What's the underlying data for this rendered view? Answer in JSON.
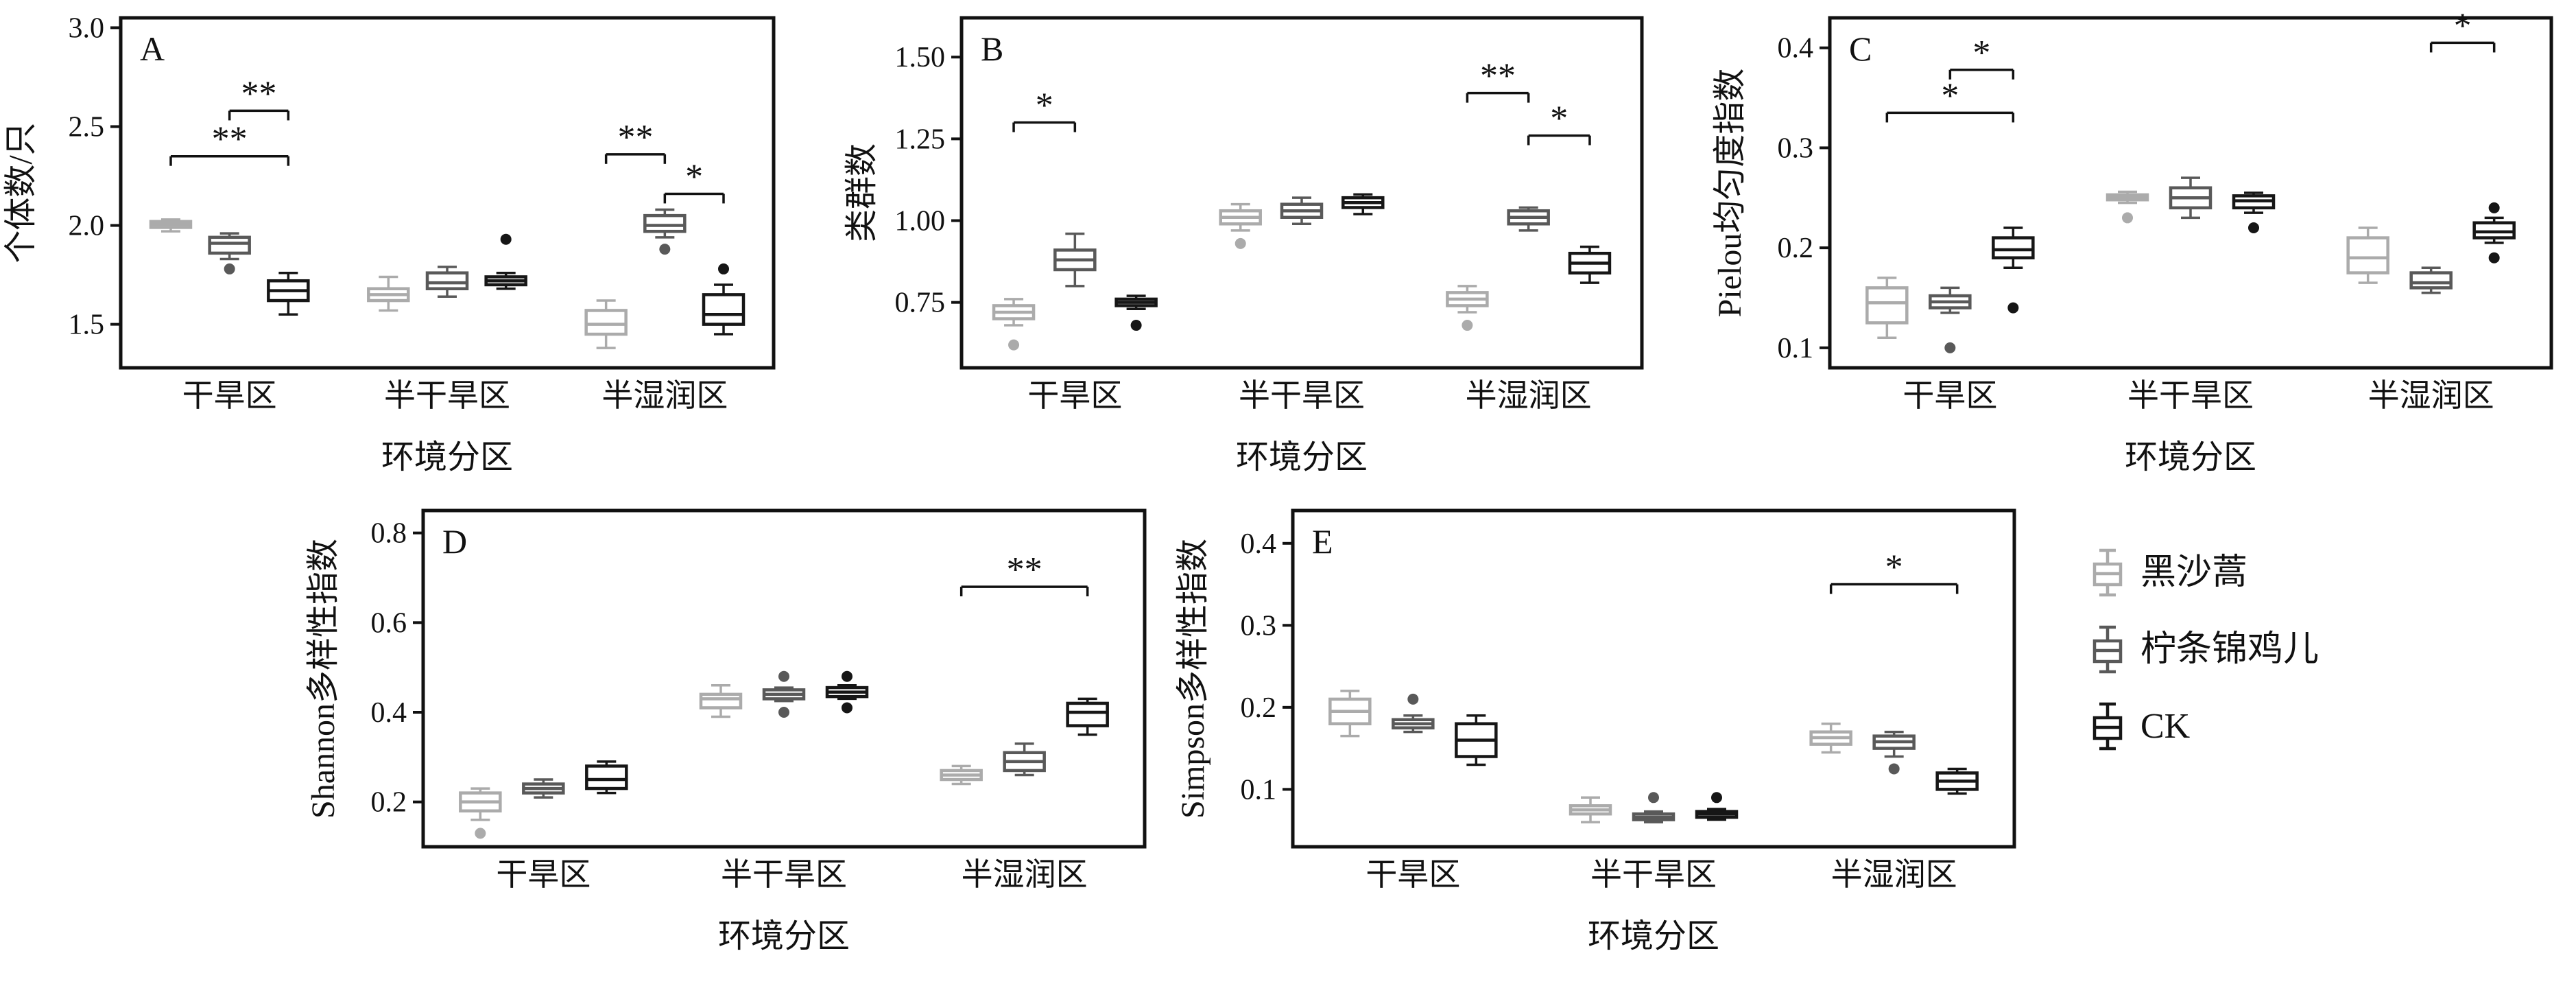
{
  "legend": {
    "items": [
      {
        "label": "黑沙蒿",
        "color": "#ababab"
      },
      {
        "label": "柠条锦鸡儿",
        "color": "#595959"
      },
      {
        "label": "CK",
        "color": "#161616"
      }
    ]
  },
  "chart_data": [
    {
      "type": "box",
      "panel_label": "A",
      "ylabel": "个体数/只",
      "xlabel": "环境分区",
      "ylim": [
        1.28,
        3.05
      ],
      "yticks": [
        1.5,
        2.0,
        2.5,
        3.0
      ],
      "tick_decimals": 1,
      "categories": [
        "干旱区",
        "半干旱区",
        "半湿润区"
      ],
      "series_names": [
        "黑沙蒿",
        "柠条锦鸡儿",
        "CK"
      ],
      "boxes": [
        [
          {
            "stats": [
              1.97,
              1.99,
              2.005,
              2.02,
              2.03
            ],
            "out": []
          },
          {
            "stats": [
              1.83,
              1.86,
              1.91,
              1.94,
              1.96
            ],
            "out": [
              1.78
            ]
          },
          {
            "stats": [
              1.55,
              1.62,
              1.67,
              1.72,
              1.76
            ],
            "out": []
          }
        ],
        [
          {
            "stats": [
              1.57,
              1.62,
              1.65,
              1.68,
              1.74
            ],
            "out": []
          },
          {
            "stats": [
              1.64,
              1.68,
              1.71,
              1.76,
              1.79
            ],
            "out": []
          },
          {
            "stats": [
              1.68,
              1.7,
              1.72,
              1.74,
              1.76
            ],
            "out": [
              1.93
            ]
          }
        ],
        [
          {
            "stats": [
              1.38,
              1.45,
              1.5,
              1.57,
              1.62
            ],
            "out": []
          },
          {
            "stats": [
              1.94,
              1.97,
              2.0,
              2.05,
              2.08
            ],
            "out": [
              1.88
            ]
          },
          {
            "stats": [
              1.45,
              1.5,
              1.55,
              1.65,
              1.7
            ],
            "out": [
              1.78
            ]
          }
        ]
      ],
      "significance": [
        {
          "group": 0,
          "i1": 0,
          "i2": 2,
          "y": 2.35,
          "label": "**"
        },
        {
          "group": 0,
          "i1": 1,
          "i2": 2,
          "y": 2.58,
          "label": "**"
        },
        {
          "group": 2,
          "i1": 0,
          "i2": 1,
          "y": 2.36,
          "label": "**"
        },
        {
          "group": 2,
          "i1": 1,
          "i2": 2,
          "y": 2.16,
          "label": "*"
        }
      ]
    },
    {
      "type": "box",
      "panel_label": "B",
      "ylabel": "类群数",
      "xlabel": "环境分区",
      "ylim": [
        0.55,
        1.62
      ],
      "yticks": [
        0.75,
        1.0,
        1.25,
        1.5
      ],
      "tick_decimals": 2,
      "categories": [
        "干旱区",
        "半干旱区",
        "半湿润区"
      ],
      "series_names": [
        "黑沙蒿",
        "柠条锦鸡儿",
        "CK"
      ],
      "boxes": [
        [
          {
            "stats": [
              0.68,
              0.7,
              0.72,
              0.74,
              0.76
            ],
            "out": [
              0.62
            ]
          },
          {
            "stats": [
              0.8,
              0.85,
              0.88,
              0.91,
              0.96
            ],
            "out": []
          },
          {
            "stats": [
              0.73,
              0.74,
              0.75,
              0.76,
              0.77
            ],
            "out": [
              0.68
            ]
          }
        ],
        [
          {
            "stats": [
              0.97,
              0.99,
              1.01,
              1.03,
              1.05
            ],
            "out": [
              0.93
            ]
          },
          {
            "stats": [
              0.99,
              1.01,
              1.03,
              1.05,
              1.07
            ],
            "out": []
          },
          {
            "stats": [
              1.02,
              1.04,
              1.055,
              1.07,
              1.08
            ],
            "out": []
          }
        ],
        [
          {
            "stats": [
              0.72,
              0.74,
              0.76,
              0.78,
              0.8
            ],
            "out": [
              0.68
            ]
          },
          {
            "stats": [
              0.97,
              0.99,
              1.01,
              1.03,
              1.04
            ],
            "out": []
          },
          {
            "stats": [
              0.81,
              0.84,
              0.87,
              0.9,
              0.92
            ],
            "out": []
          }
        ]
      ],
      "significance": [
        {
          "group": 0,
          "i1": 0,
          "i2": 1,
          "y": 1.3,
          "label": "*"
        },
        {
          "group": 2,
          "i1": 0,
          "i2": 1,
          "y": 1.39,
          "label": "**"
        },
        {
          "group": 2,
          "i1": 1,
          "i2": 2,
          "y": 1.26,
          "label": "*"
        }
      ]
    },
    {
      "type": "box",
      "panel_label": "C",
      "ylabel": "Pielou均匀度指数",
      "xlabel": "环境分区",
      "ylim": [
        0.08,
        0.43
      ],
      "yticks": [
        0.1,
        0.2,
        0.3,
        0.4
      ],
      "tick_decimals": 1,
      "categories": [
        "干旱区",
        "半干旱区",
        "半湿润区"
      ],
      "series_names": [
        "黑沙蒿",
        "柠条锦鸡儿",
        "CK"
      ],
      "boxes": [
        [
          {
            "stats": [
              0.11,
              0.125,
              0.145,
              0.16,
              0.17
            ],
            "out": []
          },
          {
            "stats": [
              0.135,
              0.14,
              0.146,
              0.152,
              0.16
            ],
            "out": [
              0.1
            ]
          },
          {
            "stats": [
              0.18,
              0.19,
              0.198,
              0.21,
              0.22
            ],
            "out": [
              0.14
            ]
          }
        ],
        [
          {
            "stats": [
              0.245,
              0.248,
              0.25,
              0.253,
              0.256
            ],
            "out": [
              0.23
            ]
          },
          {
            "stats": [
              0.23,
              0.24,
              0.25,
              0.26,
              0.27
            ],
            "out": []
          },
          {
            "stats": [
              0.235,
              0.24,
              0.247,
              0.252,
              0.255
            ],
            "out": [
              0.22
            ]
          }
        ],
        [
          {
            "stats": [
              0.165,
              0.175,
              0.19,
              0.21,
              0.22
            ],
            "out": []
          },
          {
            "stats": [
              0.155,
              0.16,
              0.165,
              0.175,
              0.18
            ],
            "out": []
          },
          {
            "stats": [
              0.205,
              0.21,
              0.216,
              0.225,
              0.23
            ],
            "out": [
              0.19,
              0.24
            ]
          }
        ]
      ],
      "significance": [
        {
          "group": 0,
          "i1": 0,
          "i2": 2,
          "y": 0.335,
          "label": "*"
        },
        {
          "group": 0,
          "i1": 1,
          "i2": 2,
          "y": 0.378,
          "label": "*"
        },
        {
          "group": 2,
          "i1": 1,
          "i2": 2,
          "y": 0.405,
          "label": "*"
        }
      ]
    },
    {
      "type": "box",
      "panel_label": "D",
      "ylabel": "Shannon多样性指数",
      "xlabel": "环境分区",
      "ylim": [
        0.1,
        0.85
      ],
      "yticks": [
        0.2,
        0.4,
        0.6,
        0.8
      ],
      "tick_decimals": 1,
      "categories": [
        "干旱区",
        "半干旱区",
        "半湿润区"
      ],
      "series_names": [
        "黑沙蒿",
        "柠条锦鸡儿",
        "CK"
      ],
      "boxes": [
        [
          {
            "stats": [
              0.16,
              0.18,
              0.2,
              0.22,
              0.23
            ],
            "out": [
              0.13
            ]
          },
          {
            "stats": [
              0.21,
              0.22,
              0.23,
              0.24,
              0.25
            ],
            "out": []
          },
          {
            "stats": [
              0.22,
              0.23,
              0.25,
              0.28,
              0.29
            ],
            "out": []
          }
        ],
        [
          {
            "stats": [
              0.39,
              0.41,
              0.43,
              0.44,
              0.46
            ],
            "out": []
          },
          {
            "stats": [
              0.425,
              0.43,
              0.44,
              0.45,
              0.455
            ],
            "out": [
              0.4,
              0.48
            ]
          },
          {
            "stats": [
              0.43,
              0.435,
              0.445,
              0.455,
              0.46
            ],
            "out": [
              0.41,
              0.48
            ]
          }
        ],
        [
          {
            "stats": [
              0.24,
              0.25,
              0.26,
              0.27,
              0.28
            ],
            "out": []
          },
          {
            "stats": [
              0.26,
              0.27,
              0.29,
              0.31,
              0.33
            ],
            "out": []
          },
          {
            "stats": [
              0.35,
              0.37,
              0.4,
              0.42,
              0.43
            ],
            "out": []
          }
        ]
      ],
      "significance": [
        {
          "group": 2,
          "i1": 0,
          "i2": 2,
          "y": 0.68,
          "label": "**"
        }
      ]
    },
    {
      "type": "box",
      "panel_label": "E",
      "ylabel": "Simpson多样性指数",
      "xlabel": "环境分区",
      "ylim": [
        0.03,
        0.44
      ],
      "yticks": [
        0.1,
        0.2,
        0.3,
        0.4
      ],
      "tick_decimals": 1,
      "categories": [
        "干旱区",
        "半干旱区",
        "半湿润区"
      ],
      "series_names": [
        "黑沙蒿",
        "柠条锦鸡儿",
        "CK"
      ],
      "boxes": [
        [
          {
            "stats": [
              0.165,
              0.18,
              0.195,
              0.21,
              0.22
            ],
            "out": []
          },
          {
            "stats": [
              0.17,
              0.175,
              0.18,
              0.185,
              0.19
            ],
            "out": [
              0.21
            ]
          },
          {
            "stats": [
              0.13,
              0.14,
              0.16,
              0.18,
              0.19
            ],
            "out": []
          }
        ],
        [
          {
            "stats": [
              0.06,
              0.07,
              0.075,
              0.08,
              0.09
            ],
            "out": []
          },
          {
            "stats": [
              0.06,
              0.063,
              0.066,
              0.07,
              0.073
            ],
            "out": [
              0.09
            ]
          },
          {
            "stats": [
              0.063,
              0.066,
              0.07,
              0.073,
              0.076
            ],
            "out": [
              0.09
            ]
          }
        ],
        [
          {
            "stats": [
              0.145,
              0.155,
              0.163,
              0.17,
              0.18
            ],
            "out": []
          },
          {
            "stats": [
              0.14,
              0.15,
              0.158,
              0.165,
              0.17
            ],
            "out": [
              0.125
            ]
          },
          {
            "stats": [
              0.095,
              0.1,
              0.11,
              0.12,
              0.125
            ],
            "out": []
          }
        ]
      ],
      "significance": [
        {
          "group": 2,
          "i1": 0,
          "i2": 2,
          "y": 0.35,
          "label": "*"
        }
      ]
    }
  ]
}
